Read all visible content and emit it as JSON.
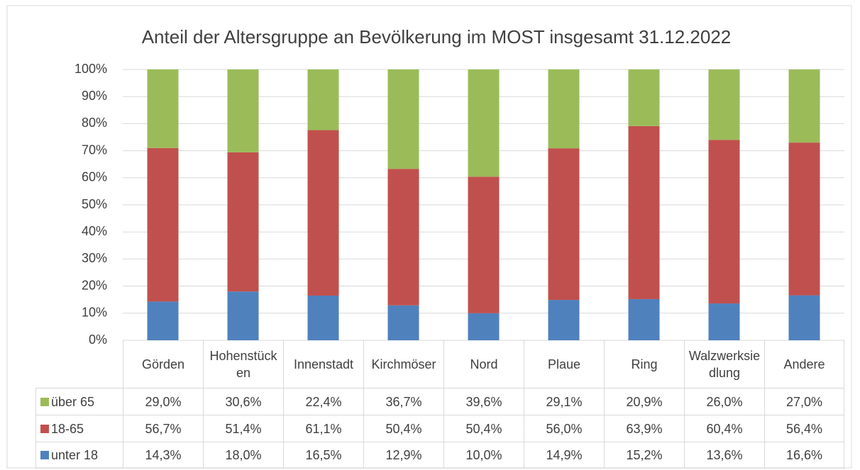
{
  "chart_data": {
    "type": "stacked_bar",
    "title": "Anteil der Altersgruppe an Bevölkerung im MOST insgesamt 31.12.2022",
    "categories": [
      "Görden",
      "Hohenstücken",
      "Innenstadt",
      "Kirchmöser",
      "Nord",
      "Plaue",
      "Ring",
      "Walzwerksiedlung",
      "Andere"
    ],
    "series": [
      {
        "name": "unter 18",
        "color": "#4f81bd",
        "values": [
          14.3,
          18.0,
          16.5,
          12.9,
          10.0,
          14.9,
          15.2,
          13.6,
          16.6
        ],
        "value_labels": [
          "14,3%",
          "18,0%",
          "16,5%",
          "12,9%",
          "10,0%",
          "14,9%",
          "15,2%",
          "13,6%",
          "16,6%"
        ]
      },
      {
        "name": "18-65",
        "color": "#c0504d",
        "values": [
          56.7,
          51.4,
          61.1,
          50.4,
          50.4,
          56.0,
          63.9,
          60.4,
          56.4
        ],
        "value_labels": [
          "56,7%",
          "51,4%",
          "61,1%",
          "50,4%",
          "50,4%",
          "56,0%",
          "63,9%",
          "60,4%",
          "56,4%"
        ]
      },
      {
        "name": "über 65",
        "color": "#9bbb59",
        "values": [
          29.0,
          30.6,
          22.4,
          36.7,
          39.6,
          29.1,
          20.9,
          26.0,
          27.0
        ],
        "value_labels": [
          "29,0%",
          "30,6%",
          "22,4%",
          "36,7%",
          "39,6%",
          "29,1%",
          "20,9%",
          "26,0%",
          "27,0%"
        ]
      }
    ],
    "ylim": [
      0,
      100
    ],
    "yticks": [
      {
        "value": 0,
        "label": "0%"
      },
      {
        "value": 10,
        "label": "10%"
      },
      {
        "value": 20,
        "label": "20%"
      },
      {
        "value": 30,
        "label": "30%"
      },
      {
        "value": 40,
        "label": "40%"
      },
      {
        "value": 50,
        "label": "50%"
      },
      {
        "value": 60,
        "label": "60%"
      },
      {
        "value": 70,
        "label": "70%"
      },
      {
        "value": 80,
        "label": "80%"
      },
      {
        "value": 90,
        "label": "90%"
      },
      {
        "value": 100,
        "label": "100%"
      }
    ],
    "grid": true
  }
}
